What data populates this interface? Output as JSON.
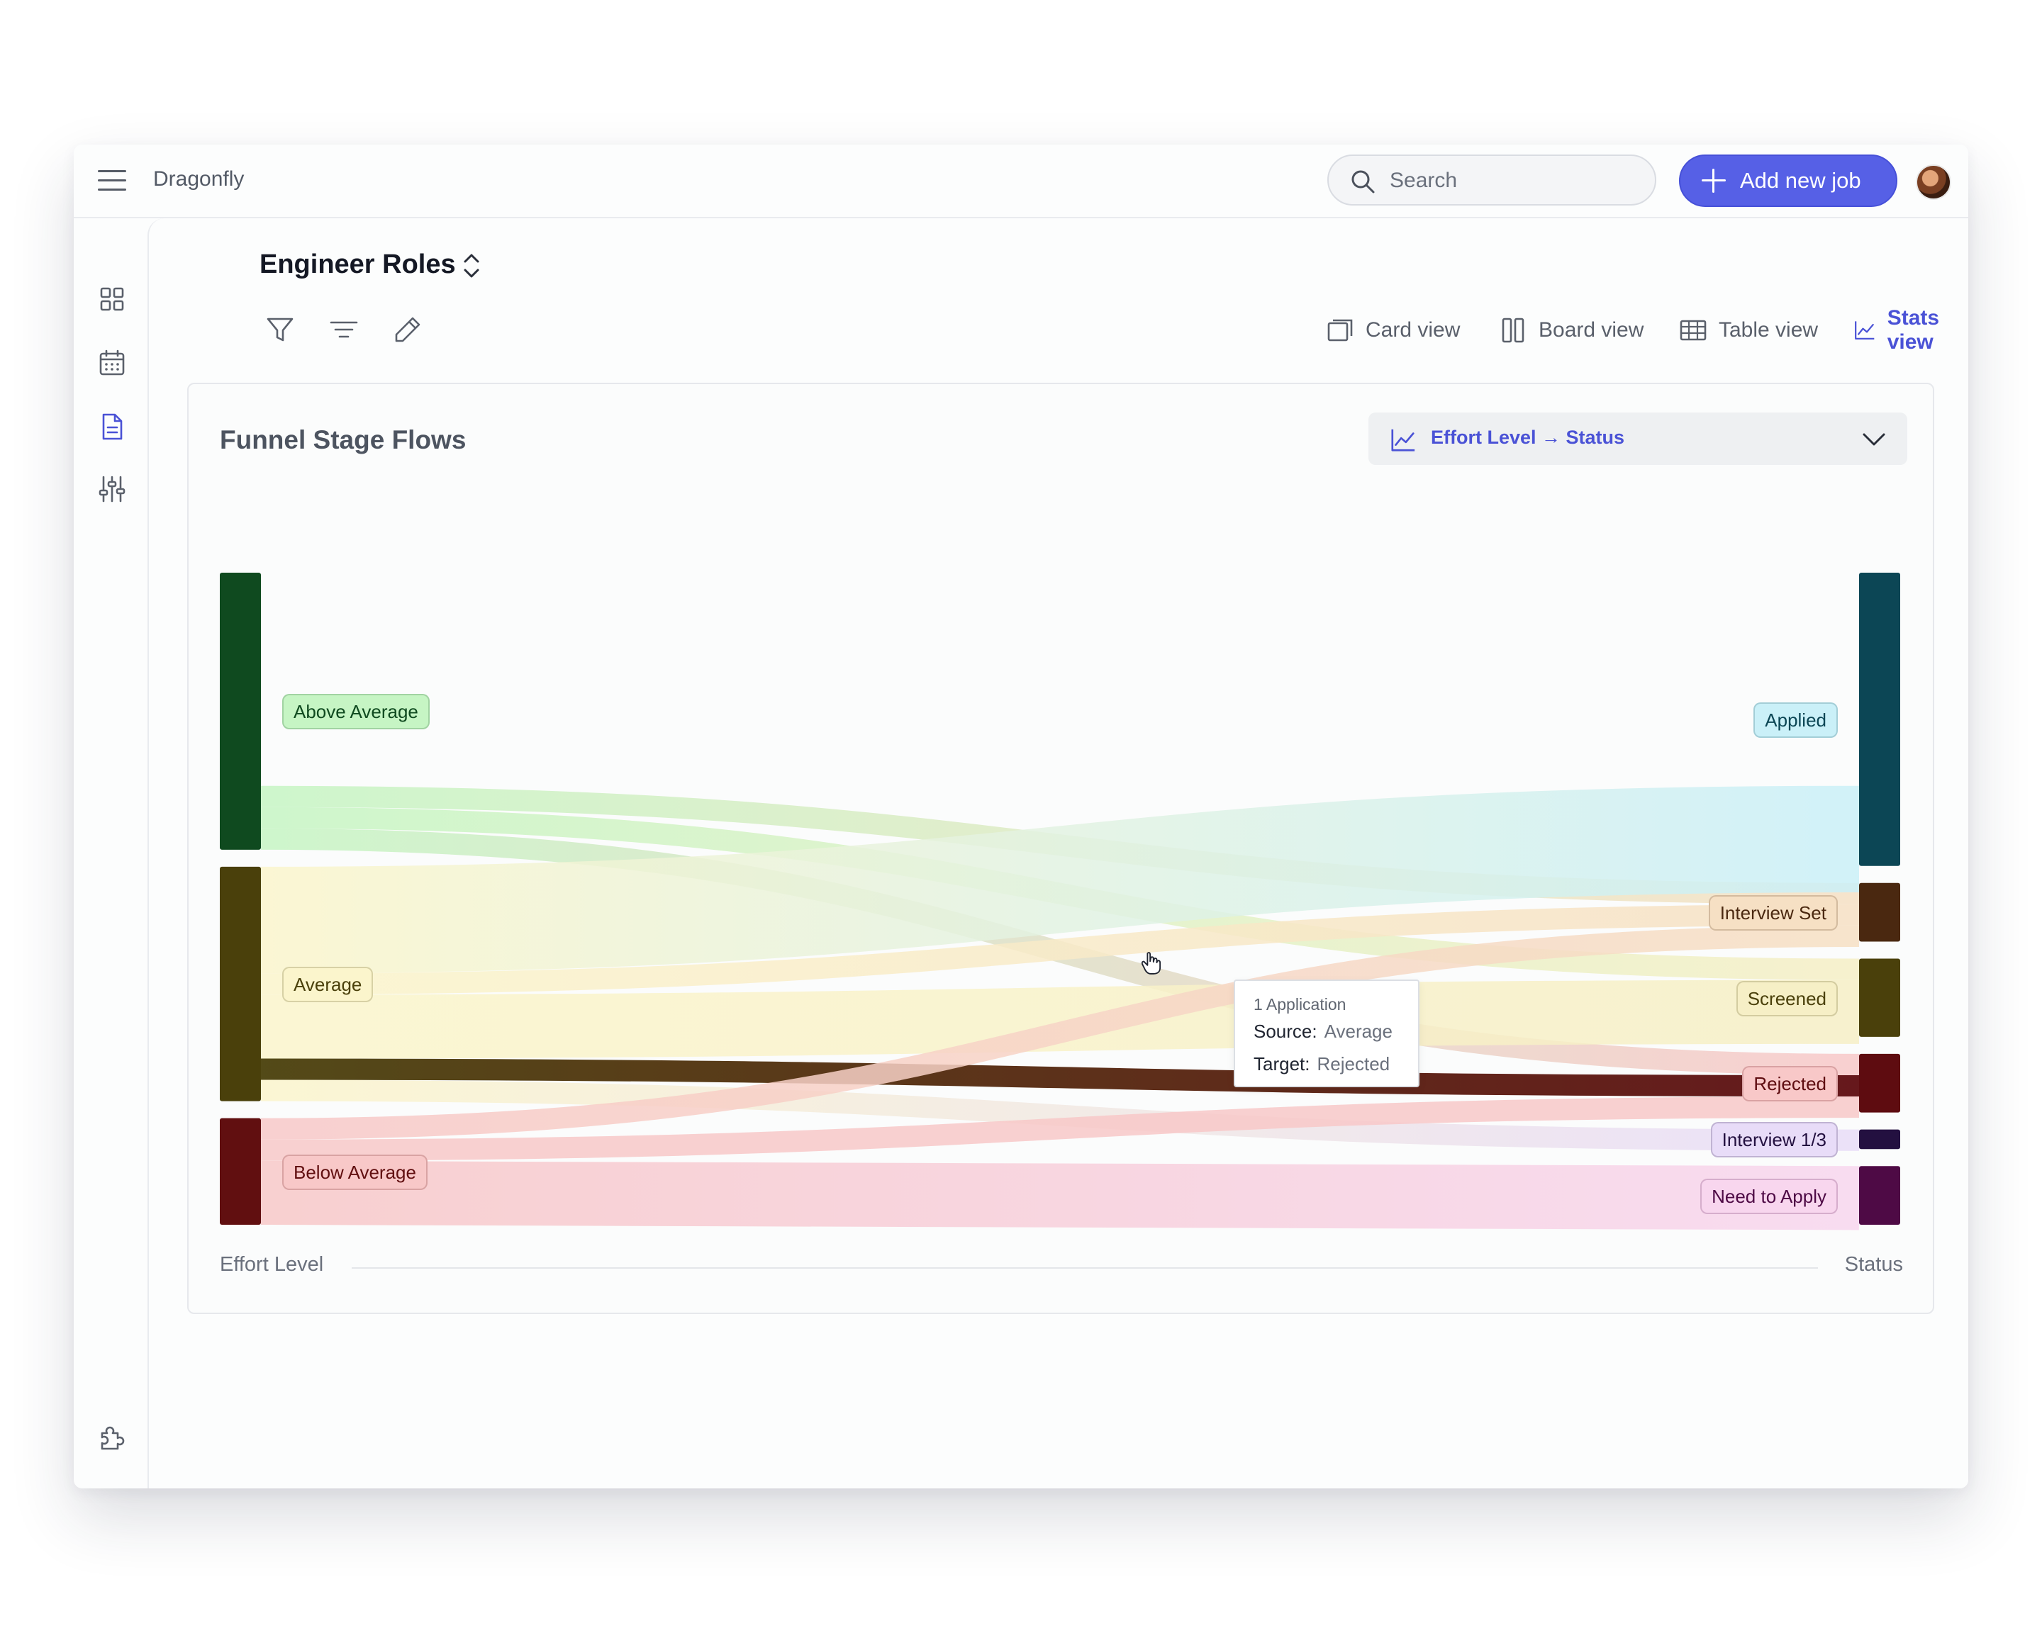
{
  "app": {
    "title": "Dragonfly"
  },
  "header": {
    "search_placeholder": "Search",
    "add_button_label": "Add new job"
  },
  "sidebar": {
    "items": [
      {
        "name": "dashboard",
        "icon": "grid-icon"
      },
      {
        "name": "calendar",
        "icon": "calendar-icon"
      },
      {
        "name": "jobs",
        "icon": "document-icon",
        "active": true
      },
      {
        "name": "settings",
        "icon": "sliders-icon"
      },
      {
        "name": "integrations",
        "icon": "puzzle-icon"
      }
    ]
  },
  "page": {
    "title": "Engineer Roles",
    "views": [
      {
        "label": "Card view",
        "icon": "card-view-icon",
        "active": false
      },
      {
        "label": "Board view",
        "icon": "board-view-icon",
        "active": false
      },
      {
        "label": "Table view",
        "icon": "table-view-icon",
        "active": false
      },
      {
        "label": "Stats view",
        "icon": "stats-view-icon",
        "active": true
      }
    ]
  },
  "card": {
    "title": "Funnel Stage Flows",
    "selector_label": "Effort Level → Status",
    "axis_left": "Effort Level",
    "axis_right": "Status"
  },
  "colors": {
    "accent": "#5660e6",
    "active_text": "#4a52d6"
  },
  "chart_data": {
    "type": "sankey",
    "source_nodes": [
      {
        "name": "Above Average",
        "color": "#0f4a1f",
        "flow": "#c6f5c4"
      },
      {
        "name": "Average",
        "color": "#4a400b",
        "flow": "#fbf5cc"
      },
      {
        "name": "Below Average",
        "color": "#610f10",
        "flow": "#f8c8c8"
      }
    ],
    "target_nodes": [
      {
        "name": "Applied",
        "color": "#0c4655",
        "flow": "#caf0f8"
      },
      {
        "name": "Interview Set",
        "color": "#4a2810",
        "flow": "#f6e0c4"
      },
      {
        "name": "Screened",
        "color": "#4a400b",
        "flow": "#f6efc6"
      },
      {
        "name": "Rejected",
        "color": "#5e0c10",
        "flow": "#f8c8c8"
      },
      {
        "name": "Interview 1/3",
        "color": "#231040",
        "flow": "#e8dcf8"
      },
      {
        "name": "Need to Apply",
        "color": "#4e0a45",
        "flow": "#f8d6ee"
      }
    ],
    "links": [
      {
        "source": "Above Average",
        "target": "Applied",
        "value": 10
      },
      {
        "source": "Above Average",
        "target": "Interview Set",
        "value": 1
      },
      {
        "source": "Above Average",
        "target": "Screened",
        "value": 1
      },
      {
        "source": "Above Average",
        "target": "Rejected",
        "value": 1
      },
      {
        "source": "Average",
        "target": "Applied",
        "value": 5
      },
      {
        "source": "Average",
        "target": "Interview Set",
        "value": 1
      },
      {
        "source": "Average",
        "target": "Screened",
        "value": 3
      },
      {
        "source": "Average",
        "target": "Rejected",
        "value": 1
      },
      {
        "source": "Average",
        "target": "Interview 1/3",
        "value": 1
      },
      {
        "source": "Below Average",
        "target": "Interview Set",
        "value": 1
      },
      {
        "source": "Below Average",
        "target": "Rejected",
        "value": 1
      },
      {
        "source": "Below Average",
        "target": "Need to Apply",
        "value": 3
      }
    ],
    "tooltip": {
      "heading": "1 Application",
      "source_label": "Source:",
      "source_value": "Average",
      "target_label": "Target:",
      "target_value": "Rejected"
    }
  }
}
